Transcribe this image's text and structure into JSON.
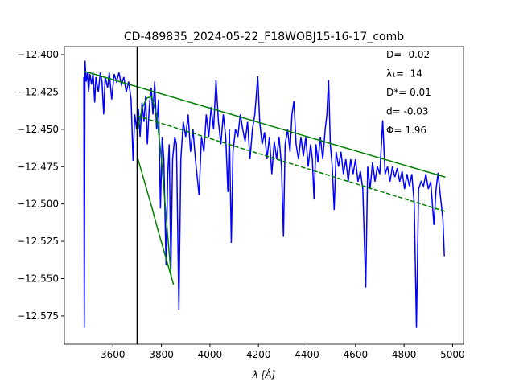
{
  "chart_data": {
    "type": "line",
    "title": "CD-489835_2024-05-22_F18WOBJ15-16-17_comb",
    "xlabel": "λ [Å]",
    "annotations": [
      "D= -0.02",
      "λ₁=  14",
      "D*= 0.01",
      "d= -0.03",
      "Φ= 1.96"
    ],
    "xlim": [
      3400,
      5045
    ],
    "ylim": [
      -12.5939,
      -12.3946
    ],
    "xticks": [
      3600,
      3800,
      4000,
      4200,
      4400,
      4600,
      4800,
      5000
    ],
    "yticks": [
      {
        "value": -12.4,
        "label": "−12.400"
      },
      {
        "value": -12.425,
        "label": "−12.425"
      },
      {
        "value": -12.45,
        "label": "−12.450"
      },
      {
        "value": -12.475,
        "label": "−12.475"
      },
      {
        "value": -12.5,
        "label": "−12.500"
      },
      {
        "value": -12.525,
        "label": "−12.525"
      },
      {
        "value": -12.55,
        "label": "−12.550"
      },
      {
        "value": -12.575,
        "label": "−12.575"
      }
    ],
    "vlines": [
      {
        "x": 3700,
        "color": "#000000"
      }
    ],
    "series": [
      {
        "color": "#0000ff",
        "style": "solid",
        "x": [
          3480,
          3482,
          3485,
          3490,
          3495,
          3500,
          3505,
          3512,
          3518,
          3525,
          3530,
          3540,
          3548,
          3555,
          3562,
          3568,
          3578,
          3585,
          3595,
          3605,
          3615,
          3625,
          3635,
          3645,
          3655,
          3665,
          3675,
          3683,
          3690,
          3698,
          3705,
          3712,
          3720,
          3728,
          3735,
          3742,
          3750,
          3758,
          3765,
          3772,
          3780,
          3788,
          3796,
          3803,
          3810,
          3819,
          3826,
          3832,
          3839,
          3846,
          3855,
          3862,
          3872,
          3880,
          3890,
          3900,
          3910,
          3920,
          3930,
          3940,
          3955,
          3965,
          3975,
          3985,
          3995,
          4005,
          4015,
          4025,
          4035,
          4045,
          4055,
          4065,
          4074,
          4080,
          4088,
          4095,
          4105,
          4115,
          4125,
          4135,
          4145,
          4155,
          4165,
          4175,
          4185,
          4197,
          4205,
          4215,
          4225,
          4235,
          4245,
          4255,
          4265,
          4275,
          4285,
          4295,
          4303,
          4310,
          4320,
          4330,
          4338,
          4346,
          4355,
          4365,
          4375,
          4385,
          4395,
          4405,
          4415,
          4422,
          4429,
          4437,
          4445,
          4455,
          4465,
          4475,
          4482,
          4489,
          4496,
          4504,
          4512,
          4520,
          4530,
          4540,
          4550,
          4560,
          4570,
          4580,
          4590,
          4600,
          4610,
          4620,
          4630,
          4642,
          4650,
          4660,
          4670,
          4680,
          4690,
          4700,
          4712,
          4722,
          4732,
          4742,
          4752,
          4762,
          4772,
          4782,
          4792,
          4802,
          4812,
          4822,
          4832,
          4842,
          4851,
          4860,
          4870,
          4880,
          4890,
          4900,
          4910,
          4923,
          4932,
          4940,
          4950,
          4960,
          4966
        ],
        "values": [
          -12.415,
          -12.583,
          -12.404,
          -12.418,
          -12.412,
          -12.425,
          -12.413,
          -12.42,
          -12.412,
          -12.432,
          -12.415,
          -12.425,
          -12.412,
          -12.418,
          -12.44,
          -12.415,
          -12.422,
          -12.412,
          -12.43,
          -12.413,
          -12.418,
          -12.412,
          -12.42,
          -12.415,
          -12.425,
          -12.418,
          -12.43,
          -12.471,
          -12.44,
          -12.45,
          -12.436,
          -12.455,
          -12.432,
          -12.445,
          -12.428,
          -12.46,
          -12.435,
          -12.422,
          -12.44,
          -12.418,
          -12.45,
          -12.43,
          -12.503,
          -12.455,
          -12.47,
          -12.541,
          -12.48,
          -12.46,
          -12.544,
          -12.47,
          -12.455,
          -12.46,
          -12.571,
          -12.47,
          -12.445,
          -12.455,
          -12.44,
          -12.465,
          -12.45,
          -12.47,
          -12.494,
          -12.455,
          -12.465,
          -12.44,
          -12.455,
          -12.435,
          -12.45,
          -12.417,
          -12.445,
          -12.46,
          -12.44,
          -12.455,
          -12.492,
          -12.45,
          -12.526,
          -12.465,
          -12.45,
          -12.455,
          -12.44,
          -12.45,
          -12.458,
          -12.445,
          -12.47,
          -12.45,
          -12.44,
          -12.4145,
          -12.445,
          -12.46,
          -12.452,
          -12.47,
          -12.455,
          -12.48,
          -12.458,
          -12.47,
          -12.455,
          -12.475,
          -12.522,
          -12.46,
          -12.45,
          -12.465,
          -12.44,
          -12.431,
          -12.46,
          -12.47,
          -12.455,
          -12.468,
          -12.455,
          -12.475,
          -12.46,
          -12.47,
          -12.497,
          -12.46,
          -12.472,
          -12.455,
          -12.47,
          -12.45,
          -12.44,
          -12.417,
          -12.46,
          -12.475,
          -12.504,
          -12.465,
          -12.475,
          -12.465,
          -12.48,
          -12.47,
          -12.485,
          -12.47,
          -12.48,
          -12.47,
          -12.485,
          -12.478,
          -12.49,
          -12.556,
          -12.475,
          -12.49,
          -12.472,
          -12.485,
          -12.475,
          -12.48,
          -12.444,
          -12.48,
          -12.475,
          -12.485,
          -12.475,
          -12.482,
          -12.476,
          -12.485,
          -12.478,
          -12.49,
          -12.48,
          -12.488,
          -12.48,
          -12.5,
          -12.583,
          -12.49,
          -12.485,
          -12.488,
          -12.48,
          -12.49,
          -12.485,
          -12.514,
          -12.49,
          -12.479,
          -12.495,
          -12.51,
          -12.535
        ]
      },
      {
        "color": "#008000",
        "style": "solid",
        "x": [
          3480,
          4970
        ],
        "values": [
          -12.411,
          -12.482
        ]
      },
      {
        "color": "#008000",
        "style": "dashed",
        "x": [
          3700,
          4970
        ],
        "values": [
          -12.441,
          -12.505
        ]
      },
      {
        "color": "#008000",
        "style": "solid",
        "x": [
          3700,
          3720,
          3740,
          3760,
          3780,
          3800,
          3820,
          3840
        ],
        "values": [
          -12.452,
          -12.436,
          -12.429,
          -12.428,
          -12.44,
          -12.47,
          -12.51,
          -12.548
        ]
      },
      {
        "color": "#008000",
        "style": "solid",
        "x": [
          3700,
          3730,
          3760,
          3790,
          3820,
          3850
        ],
        "values": [
          -12.468,
          -12.485,
          -12.502,
          -12.52,
          -12.537,
          -12.554
        ]
      }
    ]
  }
}
